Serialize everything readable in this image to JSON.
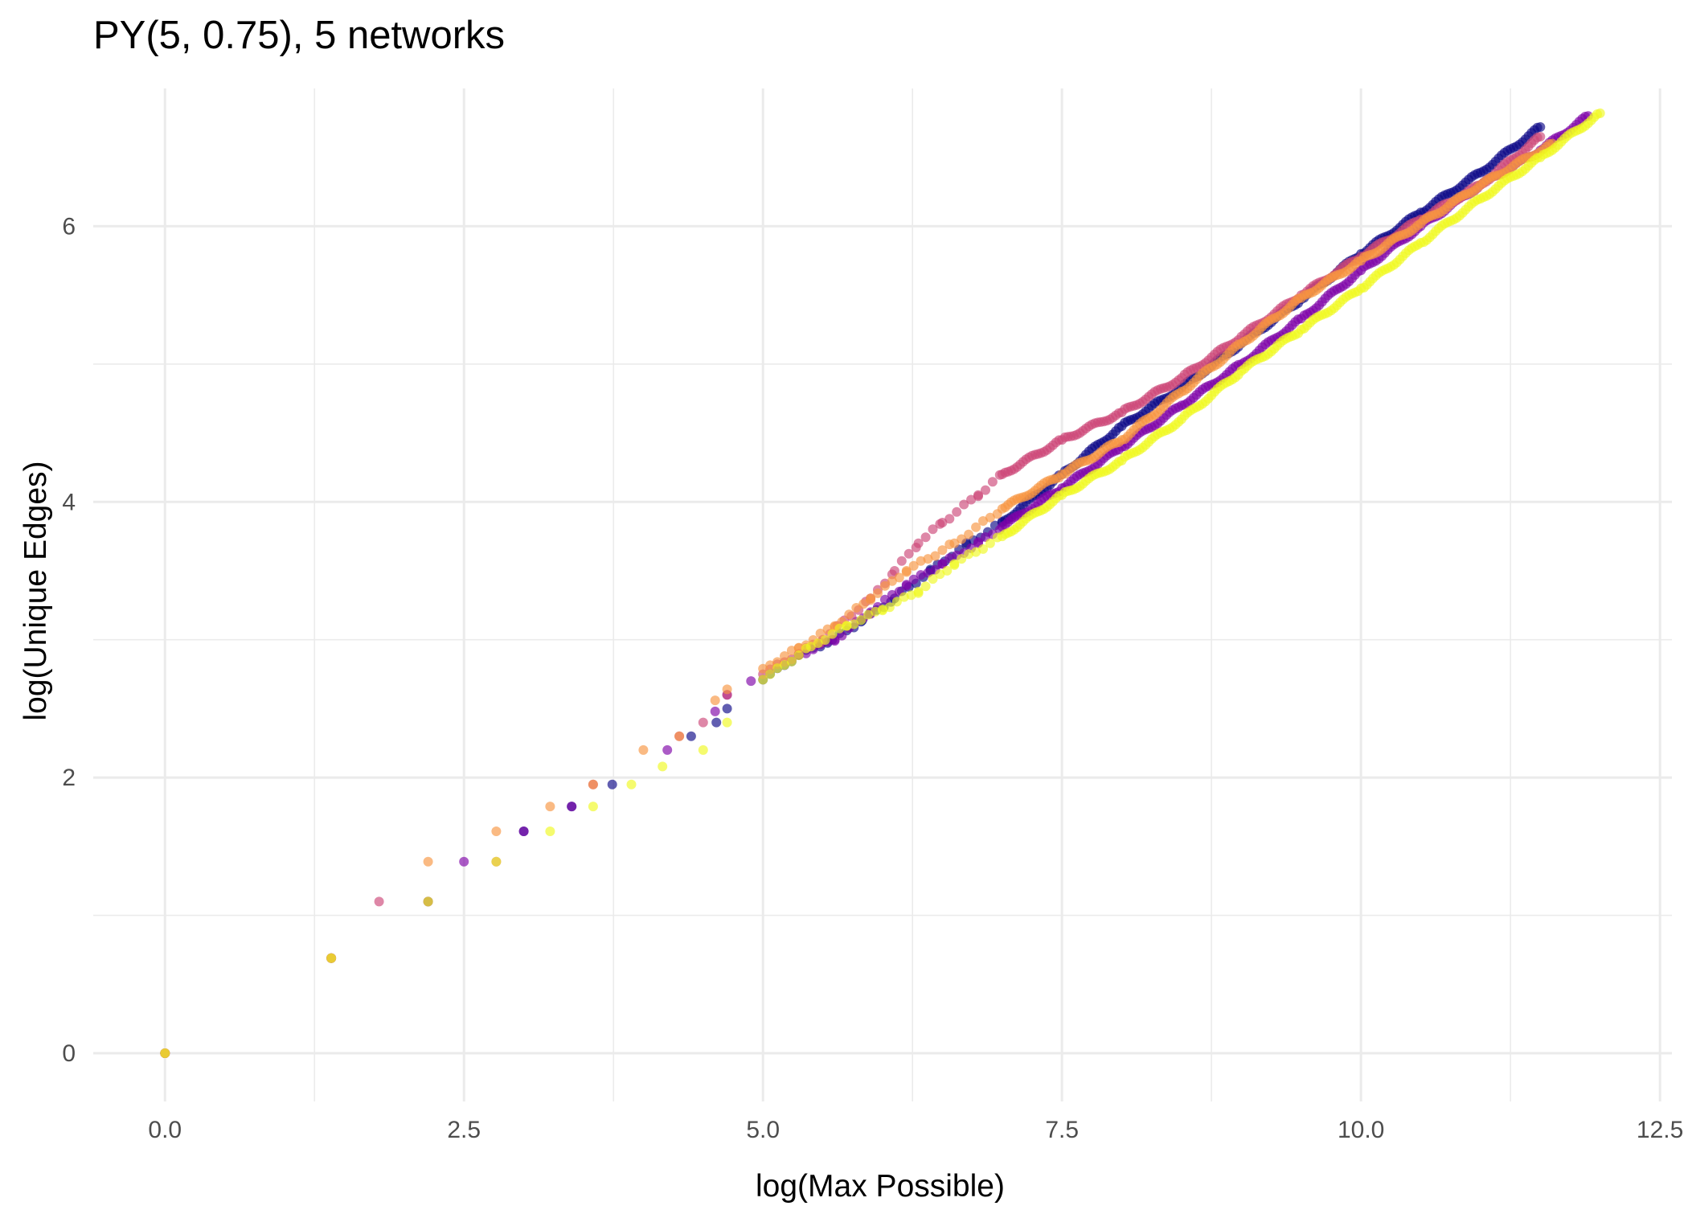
{
  "chart_data": {
    "type": "scatter",
    "title": "PY(5, 0.75), 5 networks",
    "xlabel": "log(Max Possible)",
    "ylabel": "log(Unique Edges)",
    "xlim": [
      -0.6,
      12.6
    ],
    "ylim": [
      -0.35,
      7.0
    ],
    "x_ticks": [
      0,
      2.5,
      5,
      7.5,
      10,
      12.5
    ],
    "x_tick_labels": [
      "0.0",
      "2.5",
      "5.0",
      "7.5",
      "10.0",
      "12.5"
    ],
    "y_ticks": [
      0,
      2,
      4,
      6
    ],
    "y_tick_labels": [
      "0",
      "2",
      "4",
      "6"
    ],
    "grid": true,
    "legend": "none",
    "point_opacity": 0.65,
    "series": [
      {
        "color": "#0d0887",
        "points": [
          [
            0,
            0
          ],
          [
            1.39,
            0.69
          ],
          [
            2.2,
            1.1
          ],
          [
            3.0,
            1.61
          ],
          [
            3.4,
            1.79
          ],
          [
            3.74,
            1.95
          ],
          [
            4.4,
            2.3
          ],
          [
            4.61,
            2.4
          ],
          [
            4.7,
            2.5
          ],
          [
            5.0,
            2.71
          ],
          [
            5.3,
            2.89
          ],
          [
            5.58,
            3.0
          ],
          [
            5.83,
            3.14
          ],
          [
            6.1,
            3.3
          ],
          [
            6.4,
            3.5
          ],
          [
            6.7,
            3.69
          ],
          [
            7.0,
            3.85
          ],
          [
            7.5,
            4.2
          ],
          [
            8.0,
            4.55
          ],
          [
            8.5,
            4.83
          ],
          [
            9.0,
            5.15
          ],
          [
            9.5,
            5.47
          ],
          [
            10.0,
            5.8
          ],
          [
            10.5,
            6.1
          ],
          [
            11.0,
            6.39
          ],
          [
            11.5,
            6.72
          ]
        ]
      },
      {
        "color": "#7e03a8",
        "points": [
          [
            0,
            0
          ],
          [
            1.39,
            0.69
          ],
          [
            2.5,
            1.39
          ],
          [
            3.0,
            1.61
          ],
          [
            3.4,
            1.79
          ],
          [
            4.2,
            2.2
          ],
          [
            4.6,
            2.48
          ],
          [
            4.7,
            2.6
          ],
          [
            4.9,
            2.7
          ],
          [
            5.3,
            2.89
          ],
          [
            5.6,
            3.0
          ],
          [
            5.9,
            3.2
          ],
          [
            6.2,
            3.4
          ],
          [
            6.5,
            3.55
          ],
          [
            6.8,
            3.7
          ],
          [
            7.0,
            3.82
          ],
          [
            7.5,
            4.1
          ],
          [
            8.0,
            4.4
          ],
          [
            8.5,
            4.7
          ],
          [
            9.0,
            5.0
          ],
          [
            9.5,
            5.33
          ],
          [
            10.0,
            5.68
          ],
          [
            10.5,
            6.0
          ],
          [
            11.0,
            6.3
          ],
          [
            11.5,
            6.55
          ],
          [
            11.9,
            6.8
          ]
        ]
      },
      {
        "color": "#cc4778",
        "points": [
          [
            0,
            0
          ],
          [
            1.39,
            0.69
          ],
          [
            1.79,
            1.1
          ],
          [
            2.2,
            1.1
          ],
          [
            2.77,
            1.39
          ],
          [
            3.58,
            1.95
          ],
          [
            4.3,
            2.3
          ],
          [
            4.5,
            2.4
          ],
          [
            4.7,
            2.6
          ],
          [
            5.0,
            2.75
          ],
          [
            5.5,
            3.0
          ],
          [
            5.9,
            3.3
          ],
          [
            6.1,
            3.5
          ],
          [
            6.3,
            3.7
          ],
          [
            6.5,
            3.85
          ],
          [
            6.8,
            4.05
          ],
          [
            7.0,
            4.2
          ],
          [
            7.5,
            4.45
          ],
          [
            8.0,
            4.65
          ],
          [
            8.5,
            4.9
          ],
          [
            9.0,
            5.2
          ],
          [
            9.5,
            5.5
          ],
          [
            10.0,
            5.78
          ],
          [
            10.5,
            6.05
          ],
          [
            11.0,
            6.3
          ],
          [
            11.5,
            6.65
          ]
        ]
      },
      {
        "color": "#f89540",
        "points": [
          [
            0,
            0
          ],
          [
            1.39,
            0.69
          ],
          [
            2.2,
            1.39
          ],
          [
            2.77,
            1.61
          ],
          [
            3.22,
            1.79
          ],
          [
            3.58,
            1.95
          ],
          [
            4.0,
            2.2
          ],
          [
            4.3,
            2.3
          ],
          [
            4.6,
            2.56
          ],
          [
            4.7,
            2.64
          ],
          [
            5.0,
            2.79
          ],
          [
            5.3,
            2.94
          ],
          [
            5.6,
            3.1
          ],
          [
            5.9,
            3.3
          ],
          [
            6.2,
            3.5
          ],
          [
            6.6,
            3.7
          ],
          [
            7.0,
            3.95
          ],
          [
            7.5,
            4.2
          ],
          [
            8.0,
            4.45
          ],
          [
            8.5,
            4.8
          ],
          [
            9.0,
            5.15
          ],
          [
            9.5,
            5.48
          ],
          [
            10.0,
            5.75
          ],
          [
            10.5,
            6.02
          ],
          [
            11.0,
            6.3
          ],
          [
            11.6,
            6.6
          ]
        ]
      },
      {
        "color": "#f0f921",
        "points": [
          [
            0,
            0
          ],
          [
            1.39,
            0.69
          ],
          [
            2.2,
            1.1
          ],
          [
            2.77,
            1.39
          ],
          [
            3.22,
            1.61
          ],
          [
            3.58,
            1.79
          ],
          [
            3.9,
            1.95
          ],
          [
            4.16,
            2.08
          ],
          [
            4.5,
            2.2
          ],
          [
            4.7,
            2.4
          ],
          [
            5.0,
            2.71
          ],
          [
            5.4,
            2.95
          ],
          [
            5.7,
            3.1
          ],
          [
            6.0,
            3.22
          ],
          [
            6.3,
            3.35
          ],
          [
            6.6,
            3.55
          ],
          [
            7.0,
            3.75
          ],
          [
            7.5,
            4.05
          ],
          [
            8.0,
            4.3
          ],
          [
            8.5,
            4.6
          ],
          [
            9.0,
            4.95
          ],
          [
            9.5,
            5.25
          ],
          [
            10.0,
            5.55
          ],
          [
            10.5,
            5.88
          ],
          [
            11.0,
            6.2
          ],
          [
            11.5,
            6.5
          ],
          [
            12.0,
            6.82
          ]
        ]
      }
    ]
  }
}
